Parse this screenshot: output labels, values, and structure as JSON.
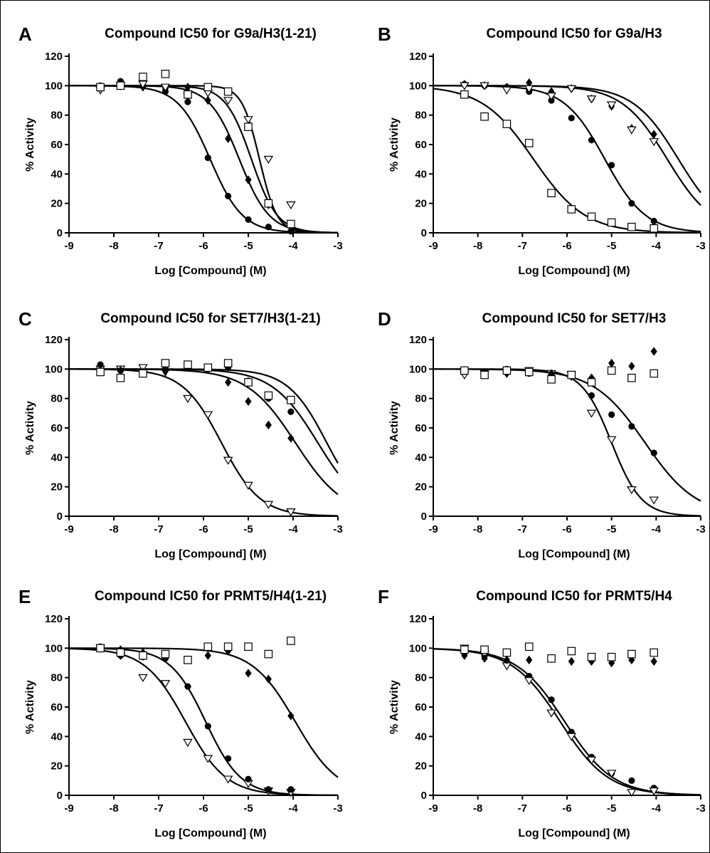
{
  "chart_data": [
    {
      "type": "scatter",
      "panel": "A",
      "title": "Compound IC50 for G9a/H3(1-21)",
      "xlabel": "Log [Compound] (M)",
      "ylabel": "% Activity",
      "xlim": [
        -9,
        -3
      ],
      "ylim": [
        0,
        120
      ],
      "xticks": [
        -9,
        -8,
        -7,
        -6,
        -5,
        -4,
        -3
      ],
      "yticks": [
        0,
        20,
        40,
        60,
        80,
        100,
        120
      ],
      "grid": false,
      "series": [
        {
          "marker": "circle",
          "x": [
            -8.3,
            -7.85,
            -7.35,
            -6.85,
            -6.35,
            -5.9,
            -5.45,
            -5.0,
            -4.55,
            -4.05
          ],
          "y": [
            100,
            103,
            100,
            96,
            89,
            51,
            25,
            9,
            4,
            1
          ],
          "fit": {
            "top": 100,
            "bottom": 0,
            "logIC50": -5.85,
            "hill": 1.2
          }
        },
        {
          "marker": "diamond",
          "x": [
            -8.3,
            -7.85,
            -7.35,
            -6.85,
            -6.35,
            -5.9,
            -5.45,
            -5.0,
            -4.55,
            -4.05
          ],
          "y": [
            99,
            101,
            99,
            98,
            99,
            90,
            64,
            36,
            19,
            5
          ],
          "fit": {
            "top": 100,
            "bottom": 0,
            "logIC50": -5.2,
            "hill": 1.3
          }
        },
        {
          "marker": "triangle",
          "x": [
            -8.3,
            -7.85,
            -7.35,
            -6.85,
            -6.35,
            -5.9,
            -5.45,
            -5.0,
            -4.55,
            -4.05
          ],
          "y": [
            97,
            100,
            101,
            99,
            93,
            95,
            90,
            77,
            50,
            19
          ],
          "fit": {
            "top": 100,
            "bottom": 0,
            "logIC50": -4.93,
            "hill": 1.5
          }
        },
        {
          "marker": "square",
          "x": [
            -8.3,
            -7.85,
            -7.35,
            -6.85,
            -6.35,
            -5.9,
            -5.45,
            -5.0,
            -4.55,
            -4.05
          ],
          "y": [
            99,
            100,
            106,
            108,
            94,
            99,
            96,
            72,
            20,
            6
          ],
          "fit": {
            "top": 100,
            "bottom": 0,
            "logIC50": -4.75,
            "hill": 2.2
          }
        }
      ]
    },
    {
      "type": "scatter",
      "panel": "B",
      "title": "Compound IC50 for G9a/H3",
      "xlabel": "Log [Compound] (M)",
      "ylabel": "% Activity",
      "xlim": [
        -9,
        -3
      ],
      "ylim": [
        0,
        120
      ],
      "xticks": [
        -9,
        -8,
        -7,
        -6,
        -5,
        -4,
        -3
      ],
      "yticks": [
        0,
        20,
        40,
        60,
        80,
        100,
        120
      ],
      "grid": false,
      "series": [
        {
          "marker": "square",
          "x": [
            -8.3,
            -7.85,
            -7.35,
            -6.85,
            -6.35,
            -5.9,
            -5.45,
            -5.0,
            -4.55,
            -4.05
          ],
          "y": [
            94,
            79,
            74,
            61,
            27,
            16,
            11,
            7,
            4,
            3
          ],
          "fit": {
            "top": 100,
            "bottom": 0,
            "logIC50": -6.75,
            "hill": 0.75
          }
        },
        {
          "marker": "circle",
          "x": [
            -8.3,
            -7.85,
            -7.35,
            -6.85,
            -6.35,
            -5.9,
            -5.45,
            -5.0,
            -4.55,
            -4.05
          ],
          "y": [
            101,
            100,
            99,
            96,
            90,
            78,
            63,
            46,
            20,
            8
          ],
          "fit": {
            "top": 100,
            "bottom": 0,
            "logIC50": -5.15,
            "hill": 0.95
          }
        },
        {
          "marker": "diamond",
          "x": [
            -8.3,
            -7.85,
            -7.35,
            -6.85,
            -6.35,
            -5.9,
            -5.45,
            -5.0,
            -4.55,
            -4.05
          ],
          "y": [
            101,
            100,
            99,
            102,
            96,
            98,
            91,
            86,
            71,
            67
          ],
          "fit": {
            "top": 100,
            "bottom": 0,
            "logIC50": -3.5,
            "hill": 0.85
          }
        },
        {
          "marker": "triangle",
          "x": [
            -8.3,
            -7.85,
            -7.35,
            -6.85,
            -6.35,
            -5.9,
            -5.45,
            -5.0,
            -4.55,
            -4.05
          ],
          "y": [
            100,
            100,
            97,
            98,
            93,
            98,
            91,
            87,
            70,
            62
          ],
          "fit": {
            "top": 100,
            "bottom": 0,
            "logIC50": -3.75,
            "hill": 0.85
          }
        }
      ]
    },
    {
      "type": "scatter",
      "panel": "C",
      "title": "Compound IC50 for SET7/H3(1-21)",
      "xlabel": "Log [Compound] (M)",
      "ylabel": "% Activity",
      "xlim": [
        -9,
        -3
      ],
      "ylim": [
        0,
        120
      ],
      "xticks": [
        -9,
        -8,
        -7,
        -6,
        -5,
        -4,
        -3
      ],
      "yticks": [
        0,
        20,
        40,
        60,
        80,
        100,
        120
      ],
      "grid": false,
      "series": [
        {
          "marker": "triangle",
          "x": [
            -8.3,
            -7.85,
            -7.35,
            -6.85,
            -6.35,
            -5.9,
            -5.45,
            -5.0,
            -4.55,
            -4.05
          ],
          "y": [
            100,
            100,
            101,
            98,
            80,
            69,
            38,
            21,
            8,
            3
          ],
          "fit": {
            "top": 100,
            "bottom": 0,
            "logIC50": -5.6,
            "hill": 1.0
          }
        },
        {
          "marker": "diamond",
          "x": [
            -8.3,
            -7.85,
            -7.35,
            -6.85,
            -6.35,
            -5.9,
            -5.45,
            -5.0,
            -4.55,
            -4.05
          ],
          "y": [
            98,
            99,
            98,
            99,
            101,
            100,
            91,
            78,
            62,
            53
          ],
          "fit": {
            "top": 100,
            "bottom": 0,
            "logIC50": -3.95,
            "hill": 0.8
          }
        },
        {
          "marker": "circle",
          "x": [
            -8.3,
            -7.85,
            -7.35,
            -6.85,
            -6.35,
            -5.9,
            -5.45,
            -5.0,
            -4.55,
            -4.05
          ],
          "y": [
            103,
            99,
            98,
            100,
            102,
            101,
            101,
            92,
            80,
            71
          ],
          "fit": {
            "top": 100,
            "bottom": 0,
            "logIC50": -3.45,
            "hill": 0.85
          }
        },
        {
          "marker": "square",
          "x": [
            -8.3,
            -7.85,
            -7.35,
            -6.85,
            -6.35,
            -5.9,
            -5.45,
            -5.0,
            -4.55,
            -4.05
          ],
          "y": [
            98,
            94,
            97,
            104,
            103,
            101,
            104,
            91,
            82,
            79
          ],
          "fit": {
            "top": 100,
            "bottom": 0,
            "logIC50": -3.25,
            "hill": 1.0
          }
        }
      ]
    },
    {
      "type": "scatter",
      "panel": "D",
      "title": "Compound IC50 for SET7/H3",
      "xlabel": "Log [Compound] (M)",
      "ylabel": "% Activity",
      "xlim": [
        -9,
        -3
      ],
      "ylim": [
        0,
        120
      ],
      "xticks": [
        -9,
        -8,
        -7,
        -6,
        -5,
        -4,
        -3
      ],
      "yticks": [
        0,
        20,
        40,
        60,
        80,
        100,
        120
      ],
      "grid": false,
      "series": [
        {
          "marker": "triangle",
          "x": [
            -8.3,
            -7.85,
            -7.35,
            -6.85,
            -6.35,
            -5.9,
            -5.45,
            -5.0,
            -4.55,
            -4.05
          ],
          "y": [
            96,
            97,
            98,
            99,
            97,
            96,
            70,
            52,
            18,
            11
          ],
          "fit": {
            "top": 100,
            "bottom": 0,
            "logIC50": -5.0,
            "hill": 1.3
          }
        },
        {
          "marker": "circle",
          "x": [
            -8.3,
            -7.85,
            -7.35,
            -6.85,
            -6.35,
            -5.9,
            -5.45,
            -5.0,
            -4.55,
            -4.05
          ],
          "y": [
            99,
            98,
            100,
            97,
            96,
            95,
            82,
            69,
            61,
            43
          ],
          "fit": {
            "top": 100,
            "bottom": 0,
            "logIC50": -4.25,
            "hill": 0.75
          }
        },
        {
          "marker": "diamond",
          "x": [
            -8.3,
            -7.85,
            -7.35,
            -6.85,
            -6.35,
            -5.9,
            -5.45,
            -5.0,
            -4.55,
            -4.05
          ],
          "y": [
            99,
            97,
            97,
            98,
            97,
            95,
            94,
            104,
            102,
            112
          ]
        },
        {
          "marker": "square",
          "x": [
            -8.3,
            -7.85,
            -7.35,
            -6.85,
            -6.35,
            -5.9,
            -5.45,
            -5.0,
            -4.55,
            -4.05
          ],
          "y": [
            99,
            96,
            99,
            98,
            93,
            96,
            91,
            99,
            94,
            97
          ]
        }
      ]
    },
    {
      "type": "scatter",
      "panel": "E",
      "title": "Compound IC50 for PRMT5/H4(1-21)",
      "xlabel": "Log [Compound] (M)",
      "ylabel": "% Activity",
      "xlim": [
        -9,
        -3
      ],
      "ylim": [
        0,
        120
      ],
      "xticks": [
        -9,
        -8,
        -7,
        -6,
        -5,
        -4,
        -3
      ],
      "yticks": [
        0,
        20,
        40,
        60,
        80,
        100,
        120
      ],
      "grid": false,
      "series": [
        {
          "marker": "triangle",
          "x": [
            -8.3,
            -7.85,
            -7.35,
            -6.85,
            -6.35,
            -5.9,
            -5.45,
            -5.0,
            -4.55,
            -4.05
          ],
          "y": [
            100,
            95,
            80,
            76,
            36,
            25,
            11,
            8,
            3,
            2
          ],
          "fit": {
            "top": 100,
            "bottom": 0,
            "logIC50": -6.4,
            "hill": 0.95
          }
        },
        {
          "marker": "circle",
          "x": [
            -8.3,
            -7.85,
            -7.35,
            -6.85,
            -6.35,
            -5.9,
            -5.45,
            -5.0,
            -4.55,
            -4.05
          ],
          "y": [
            101,
            95,
            94,
            93,
            74,
            47,
            25,
            11,
            4,
            4
          ],
          "fit": {
            "top": 100,
            "bottom": 0,
            "logIC50": -5.95,
            "hill": 1.1
          }
        },
        {
          "marker": "diamond",
          "x": [
            -8.3,
            -7.85,
            -7.35,
            -6.85,
            -6.35,
            -5.9,
            -5.45,
            -5.0,
            -4.55,
            -4.05
          ],
          "y": [
            100,
            99,
            97,
            95,
            92,
            95,
            98,
            83,
            79,
            54
          ],
          "fit": {
            "top": 100,
            "bottom": 0,
            "logIC50": -3.95,
            "hill": 0.9
          }
        },
        {
          "marker": "square",
          "x": [
            -8.3,
            -7.85,
            -7.35,
            -6.85,
            -6.35,
            -5.9,
            -5.45,
            -5.0,
            -4.55,
            -4.05
          ],
          "y": [
            100,
            97,
            95,
            96,
            92,
            101,
            101,
            101,
            96,
            105
          ]
        }
      ]
    },
    {
      "type": "scatter",
      "panel": "F",
      "title": "Compound IC50 for PRMT5/H4",
      "xlabel": "Log [Compound] (M)",
      "ylabel": "% Activity",
      "xlim": [
        -9,
        -3
      ],
      "ylim": [
        0,
        120
      ],
      "xticks": [
        -9,
        -8,
        -7,
        -6,
        -5,
        -4,
        -3
      ],
      "yticks": [
        0,
        20,
        40,
        60,
        80,
        100,
        120
      ],
      "grid": false,
      "series": [
        {
          "marker": "circle",
          "x": [
            -8.3,
            -7.85,
            -7.35,
            -6.85,
            -6.35,
            -5.9,
            -5.45,
            -5.0,
            -4.55,
            -4.05
          ],
          "y": [
            97,
            95,
            90,
            81,
            65,
            43,
            26,
            15,
            10,
            5
          ],
          "fit": {
            "top": 100,
            "bottom": 0,
            "logIC50": -6.05,
            "hill": 0.8
          }
        },
        {
          "marker": "triangle",
          "x": [
            -8.3,
            -7.85,
            -7.35,
            -6.85,
            -6.35,
            -5.9,
            -5.45,
            -5.0,
            -4.55,
            -4.05
          ],
          "y": [
            100,
            96,
            88,
            78,
            56,
            40,
            24,
            15,
            2,
            3
          ],
          "fit": {
            "top": 100,
            "bottom": 0,
            "logIC50": -6.15,
            "hill": 0.8
          }
        },
        {
          "marker": "diamond",
          "x": [
            -8.3,
            -7.85,
            -7.35,
            -6.85,
            -6.35,
            -5.9,
            -5.45,
            -5.0,
            -4.55,
            -4.05
          ],
          "y": [
            95,
            93,
            92,
            92,
            93,
            91,
            91,
            90,
            92,
            91
          ]
        },
        {
          "marker": "square",
          "x": [
            -8.3,
            -7.85,
            -7.35,
            -6.85,
            -6.35,
            -5.9,
            -5.45,
            -5.0,
            -4.55,
            -4.05
          ],
          "y": [
            99,
            99,
            97,
            101,
            93,
            98,
            94,
            94,
            96,
            97
          ]
        }
      ]
    }
  ]
}
